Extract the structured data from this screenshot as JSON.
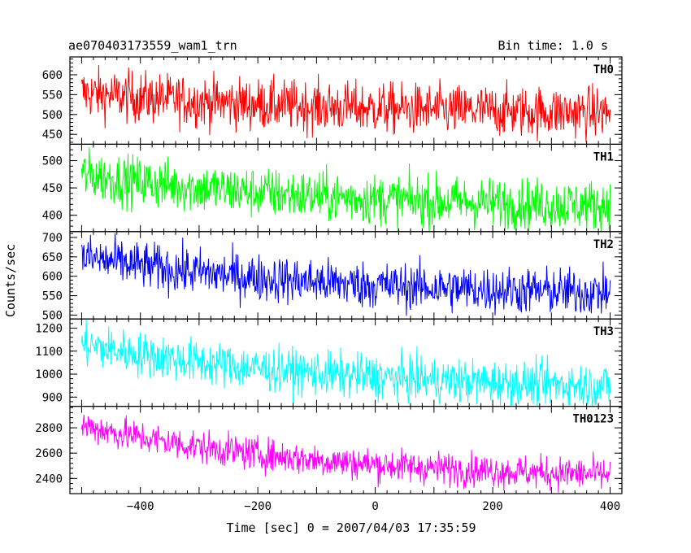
{
  "header": {
    "title": "ae070403173559_wam1_trn",
    "bin_time": "Bin time: 1.0 s"
  },
  "chart_data": {
    "type": "line",
    "xlabel": "Time [sec] 0 = 2007/04/03 17:35:59",
    "ylabel": "Counts/sec",
    "xlim": [
      -520,
      420
    ],
    "x_range": [
      -500,
      400
    ],
    "x_step": 1,
    "x_ticks": [
      -400,
      -200,
      0,
      200,
      400
    ],
    "x_tick_labels": [
      "−400",
      "−200",
      "0",
      "200",
      "400"
    ],
    "panels": [
      {
        "name": "TH0",
        "color": "#ff0000",
        "ylim": [
          425,
          645
        ],
        "y_ticks": [
          450,
          500,
          550,
          600
        ],
        "y_tick_labels": [
          "450",
          "500",
          "550",
          "600"
        ],
        "trend_start": 555,
        "trend_end": 505,
        "noise": 32
      },
      {
        "name": "TH1",
        "color": "#00ff00",
        "ylim": [
          370,
          530
        ],
        "y_ticks": [
          400,
          450,
          500
        ],
        "y_tick_labels": [
          "400",
          "450",
          "500"
        ],
        "trend_start": 475,
        "trend_end": 418,
        "noise": 23
      },
      {
        "name": "TH2",
        "color": "#0000ff",
        "ylim": [
          490,
          715
        ],
        "y_ticks": [
          500,
          550,
          600,
          650,
          700
        ],
        "y_tick_labels": [
          "500",
          "550",
          "600",
          "650",
          "700"
        ],
        "trend_start": 650,
        "trend_end": 558,
        "noise": 30
      },
      {
        "name": "TH3",
        "color": "#00ffff",
        "ylim": [
          860,
          1240
        ],
        "y_ticks": [
          900,
          1000,
          1100,
          1200
        ],
        "y_tick_labels": [
          "900",
          "1000",
          "1100",
          "1200"
        ],
        "trend_start": 1130,
        "trend_end": 950,
        "noise": 48
      },
      {
        "name": "TH0123",
        "color": "#ff00ff",
        "ylim": [
          2280,
          2970
        ],
        "y_ticks": [
          2400,
          2600,
          2800
        ],
        "y_tick_labels": [
          "2400",
          "2600",
          "2800"
        ],
        "trend_start": 2820,
        "trend_end": 2430,
        "noise": 65
      }
    ]
  }
}
